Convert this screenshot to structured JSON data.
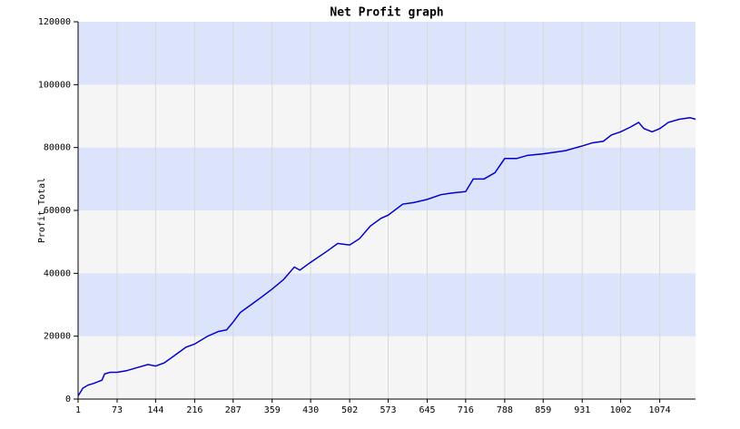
{
  "chart_data": {
    "type": "line",
    "title": "Net Profit graph",
    "y_label": "Profit Total",
    "xlim": [
      1,
      1140
    ],
    "xticks": [
      1,
      73,
      144,
      216,
      287,
      359,
      430,
      502,
      573,
      645,
      716,
      788,
      859,
      931,
      1002,
      1074
    ],
    "ylim": [
      0,
      120000
    ],
    "yticks": [
      0,
      20000,
      40000,
      60000,
      80000,
      100000,
      120000
    ],
    "grid": true,
    "band_colors": [
      "#f5f5f5",
      "#dce4fb"
    ],
    "x": [
      1,
      10,
      20,
      30,
      45,
      50,
      60,
      73,
      90,
      110,
      130,
      144,
      160,
      180,
      200,
      216,
      240,
      260,
      275,
      287,
      300,
      320,
      340,
      359,
      380,
      400,
      410,
      430,
      460,
      480,
      502,
      520,
      540,
      560,
      573,
      600,
      620,
      645,
      670,
      690,
      716,
      730,
      750,
      770,
      788,
      810,
      830,
      859,
      880,
      900,
      931,
      950,
      970,
      985,
      1002,
      1020,
      1035,
      1045,
      1060,
      1074,
      1090,
      1110,
      1130,
      1140
    ],
    "series": [
      {
        "name": "Profit Total",
        "color": "#0000cc",
        "values": [
          1000,
          3500,
          4500,
          5000,
          6000,
          8000,
          8500,
          8500,
          9000,
          10000,
          11000,
          10500,
          11500,
          14000,
          16500,
          17500,
          20000,
          21500,
          22000,
          24500,
          27500,
          30000,
          32500,
          35000,
          38000,
          42000,
          41000,
          43500,
          47000,
          49500,
          49000,
          51000,
          55000,
          57500,
          58500,
          62000,
          62500,
          63500,
          65000,
          65500,
          66000,
          70000,
          70000,
          72000,
          76500,
          76500,
          77500,
          78000,
          78500,
          79000,
          80500,
          81500,
          82000,
          84000,
          85000,
          86500,
          88000,
          86000,
          85000,
          86000,
          88000,
          89000,
          89500,
          89000
        ]
      }
    ]
  }
}
